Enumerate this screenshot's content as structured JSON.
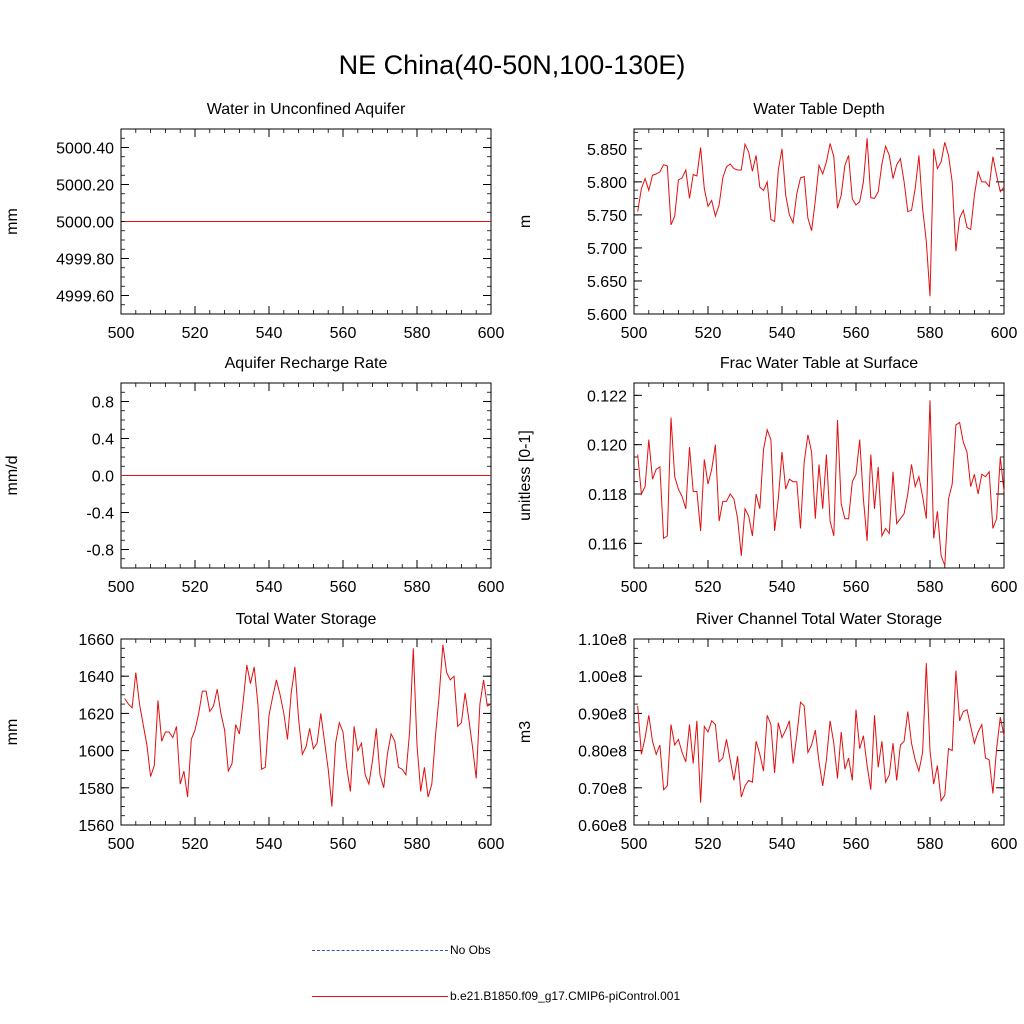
{
  "page_title": "NE China(40-50N,100-130E)",
  "legend": {
    "obs_label": "No Obs",
    "obs_color": "#3b4cc0",
    "model_label": "b.e21.B1850.f09_g17.CMIP6-piControl.001",
    "model_color": "#e01010"
  },
  "chart_data": [
    {
      "type": "line",
      "title": "Water in Unconfined Aquifer",
      "ylabel": "mm",
      "xlim": [
        500,
        600
      ],
      "ylim": [
        4999.5,
        5000.5
      ],
      "x_ticks": [
        500,
        520,
        540,
        560,
        580,
        600
      ],
      "x_tick_labels": [
        "500",
        "520",
        "540",
        "560",
        "580",
        "600"
      ],
      "y_ticks": [
        4999.6,
        4999.8,
        5000.0,
        5000.2,
        5000.4
      ],
      "y_tick_labels": [
        "4999.60",
        "4999.80",
        "5000.00",
        "5000.20",
        "5000.40"
      ],
      "series": [
        {
          "name": "b.e21.B1850.f09_g17.CMIP6-piControl.001",
          "x_start": 501,
          "values": [
            5000.0,
            5000.0
          ]
        }
      ]
    },
    {
      "type": "line",
      "title": "Water Table Depth",
      "ylabel": "m",
      "xlim": [
        500,
        600
      ],
      "ylim": [
        5.6,
        5.88
      ],
      "x_ticks": [
        500,
        520,
        540,
        560,
        580,
        600
      ],
      "x_tick_labels": [
        "500",
        "520",
        "540",
        "560",
        "580",
        "600"
      ],
      "y_ticks": [
        5.6,
        5.65,
        5.7,
        5.75,
        5.8,
        5.85
      ],
      "y_tick_labels": [
        "5.600",
        "5.650",
        "5.700",
        "5.750",
        "5.800",
        "5.850"
      ],
      "series": [
        {
          "name": "b.e21.B1850.f09_g17.CMIP6-piControl.001",
          "x_start": 501,
          "values": [
            5.755,
            5.79,
            5.805,
            5.787,
            5.81,
            5.812,
            5.815,
            5.826,
            5.824,
            5.735,
            5.748,
            5.803,
            5.806,
            5.818,
            5.775,
            5.811,
            5.809,
            5.852,
            5.79,
            5.763,
            5.772,
            5.748,
            5.765,
            5.806,
            5.823,
            5.827,
            5.82,
            5.818,
            5.818,
            5.857,
            5.845,
            5.816,
            5.84,
            5.792,
            5.787,
            5.8,
            5.743,
            5.74,
            5.818,
            5.85,
            5.78,
            5.75,
            5.738,
            5.782,
            5.806,
            5.808,
            5.745,
            5.726,
            5.772,
            5.825,
            5.812,
            5.83,
            5.858,
            5.838,
            5.76,
            5.78,
            5.825,
            5.84,
            5.774,
            5.765,
            5.77,
            5.8,
            5.866,
            5.776,
            5.775,
            5.785,
            5.827,
            5.854,
            5.84,
            5.805,
            5.826,
            5.835,
            5.8,
            5.755,
            5.757,
            5.79,
            5.84,
            5.76,
            5.71,
            5.627,
            5.85,
            5.82,
            5.83,
            5.86,
            5.84,
            5.8,
            5.695,
            5.745,
            5.757,
            5.731,
            5.728,
            5.78,
            5.815,
            5.8,
            5.8,
            5.793,
            5.838,
            5.81,
            5.785,
            5.792
          ]
        }
      ]
    },
    {
      "type": "line",
      "title": "Aquifer Recharge Rate",
      "ylabel": "mm/d",
      "xlim": [
        500,
        600
      ],
      "ylim": [
        -1,
        1
      ],
      "x_ticks": [
        500,
        520,
        540,
        560,
        580,
        600
      ],
      "x_tick_labels": [
        "500",
        "520",
        "540",
        "560",
        "580",
        "600"
      ],
      "y_ticks": [
        -0.8,
        -0.4,
        0.0,
        0.4,
        0.8
      ],
      "y_tick_labels": [
        "-0.8",
        "-0.4",
        "0.0",
        "0.4",
        "0.8"
      ],
      "series": [
        {
          "name": "b.e21.B1850.f09_g17.CMIP6-piControl.001",
          "x_start": 500,
          "values": [
            0.0,
            0.0
          ]
        }
      ]
    },
    {
      "type": "line",
      "title": "Frac Water Table at Surface",
      "ylabel": "unitless [0-1]",
      "xlim": [
        500,
        600
      ],
      "ylim": [
        0.115,
        0.1225
      ],
      "x_ticks": [
        500,
        520,
        540,
        560,
        580,
        600
      ],
      "x_tick_labels": [
        "500",
        "520",
        "540",
        "560",
        "580",
        "600"
      ],
      "y_ticks": [
        0.116,
        0.118,
        0.12,
        0.122
      ],
      "y_tick_labels": [
        "0.116",
        "0.118",
        "0.120",
        "0.122"
      ],
      "series": [
        {
          "name": "b.e21.B1850.f09_g17.CMIP6-piControl.001",
          "x_start": 501,
          "values": [
            0.1196,
            0.118,
            0.1183,
            0.1202,
            0.1186,
            0.119,
            0.1191,
            0.1162,
            0.1163,
            0.1211,
            0.1187,
            0.1182,
            0.1179,
            0.1174,
            0.1199,
            0.1181,
            0.1181,
            0.1165,
            0.1194,
            0.1184,
            0.119,
            0.12,
            0.1169,
            0.1177,
            0.1177,
            0.118,
            0.1178,
            0.117,
            0.1155,
            0.1174,
            0.1171,
            0.1163,
            0.118,
            0.1174,
            0.1198,
            0.1206,
            0.1202,
            0.1165,
            0.1178,
            0.1197,
            0.1182,
            0.1186,
            0.1185,
            0.1185,
            0.1166,
            0.1193,
            0.1204,
            0.1197,
            0.117,
            0.1192,
            0.1174,
            0.1196,
            0.1169,
            0.1163,
            0.121,
            0.1176,
            0.117,
            0.117,
            0.1185,
            0.1188,
            0.1202,
            0.1178,
            0.1161,
            0.1196,
            0.1174,
            0.1191,
            0.1163,
            0.1166,
            0.1164,
            0.1189,
            0.1168,
            0.117,
            0.1172,
            0.118,
            0.1192,
            0.1183,
            0.1187,
            0.1179,
            0.117,
            0.1218,
            0.1162,
            0.1173,
            0.1155,
            0.1151,
            0.1178,
            0.1184,
            0.1208,
            0.1209,
            0.1201,
            0.1197,
            0.1183,
            0.1188,
            0.118,
            0.1188,
            0.1187,
            0.1189,
            0.1166,
            0.117,
            0.1195,
            0.1181
          ]
        }
      ]
    },
    {
      "type": "line",
      "title": "Total Water Storage",
      "ylabel": "mm",
      "xlim": [
        500,
        600
      ],
      "ylim": [
        1560,
        1660
      ],
      "x_ticks": [
        500,
        520,
        540,
        560,
        580,
        600
      ],
      "x_tick_labels": [
        "500",
        "520",
        "540",
        "560",
        "580",
        "600"
      ],
      "y_ticks": [
        1560,
        1580,
        1600,
        1620,
        1640,
        1660
      ],
      "y_tick_labels": [
        "1560",
        "1580",
        "1600",
        "1620",
        "1640",
        "1660"
      ],
      "series": [
        {
          "name": "b.e21.B1850.f09_g17.CMIP6-piControl.001",
          "x_start": 501,
          "values": [
            1628,
            1625,
            1623,
            1642,
            1625,
            1614,
            1603,
            1586,
            1592,
            1627,
            1605,
            1610,
            1610,
            1607,
            1613,
            1582,
            1589,
            1575,
            1606,
            1611,
            1620,
            1632,
            1632,
            1621,
            1624,
            1633,
            1620,
            1611,
            1589,
            1593,
            1614,
            1609,
            1626,
            1646,
            1636,
            1645,
            1625,
            1590,
            1591,
            1619,
            1629,
            1638,
            1630,
            1620,
            1606,
            1631,
            1645,
            1617,
            1598,
            1602,
            1612,
            1601,
            1604,
            1620,
            1605,
            1590,
            1570,
            1604,
            1615,
            1610,
            1591,
            1578,
            1613,
            1600,
            1604,
            1587,
            1582,
            1595,
            1612,
            1587,
            1580,
            1598,
            1609,
            1605,
            1591,
            1590,
            1587,
            1610,
            1655,
            1603,
            1578,
            1591,
            1575,
            1582,
            1608,
            1630,
            1657,
            1642,
            1638,
            1640,
            1613,
            1615,
            1631,
            1617,
            1602,
            1585,
            1625,
            1638,
            1624,
            1625
          ]
        }
      ]
    },
    {
      "type": "line",
      "title": "River Channel Total Water Storage",
      "ylabel": "m3",
      "xlim": [
        500,
        600
      ],
      "ylim": [
        60000000,
        110000000
      ],
      "x_ticks": [
        500,
        520,
        540,
        560,
        580,
        600
      ],
      "x_tick_labels": [
        "500",
        "520",
        "540",
        "560",
        "580",
        "600"
      ],
      "y_ticks": [
        60000000,
        70000000,
        80000000,
        90000000,
        100000000,
        110000000
      ],
      "y_tick_labels": [
        "0.60e8",
        "0.70e8",
        "0.80e8",
        "0.90e8",
        "1.00e8",
        "1.10e8"
      ],
      "series": [
        {
          "name": "b.e21.B1850.f09_g17.CMIP6-piControl.001",
          "x_start": 501,
          "values": [
            92000000,
            79000000,
            83500000,
            89500000,
            82500000,
            79000000,
            81500000,
            69500000,
            70500000,
            87000000,
            81500000,
            83000000,
            79500000,
            77000000,
            87000000,
            76500000,
            88000000,
            66000000,
            86500000,
            85000000,
            88000000,
            87000000,
            77000000,
            78000000,
            83000000,
            77500000,
            72000000,
            78500000,
            67500000,
            70500000,
            72000000,
            71500000,
            82500000,
            79000000,
            74500000,
            89500000,
            87000000,
            74000000,
            87500000,
            83500000,
            85500000,
            88000000,
            76500000,
            84000000,
            93000000,
            92000000,
            79500000,
            81500000,
            85500000,
            77000000,
            70500000,
            77500000,
            88000000,
            82000000,
            72500000,
            85000000,
            75000000,
            78000000,
            72000000,
            91000000,
            80500000,
            84000000,
            76000000,
            69500000,
            89500000,
            75500000,
            82500000,
            71500000,
            73500000,
            82000000,
            72000000,
            81500000,
            82500000,
            90500000,
            82000000,
            77500000,
            74500000,
            79500000,
            103500000,
            80000000,
            71000000,
            76000000,
            66500000,
            68000000,
            80500000,
            80000000,
            101500000,
            88000000,
            90500000,
            91000000,
            86500000,
            82000000,
            85000000,
            87000000,
            78000000,
            77500000,
            68500000,
            80500000,
            89000000,
            84000000
          ]
        }
      ]
    }
  ]
}
